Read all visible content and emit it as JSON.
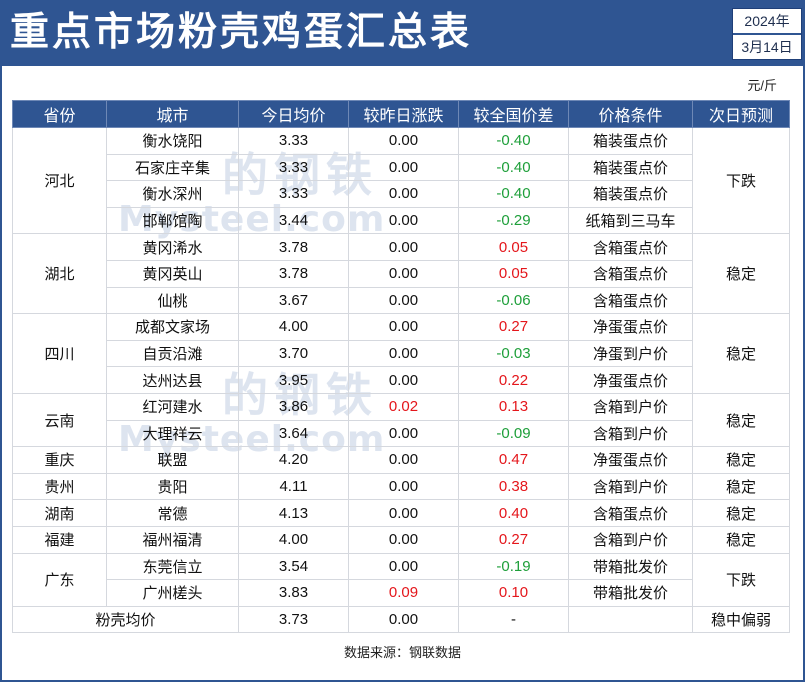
{
  "title": "重点市场粉壳鸡蛋汇总表",
  "date": {
    "year": "2024年",
    "day": "3月14日"
  },
  "unit": "元/斤",
  "watermark": {
    "cn": "的钢铁",
    "en": "Mysteel.com"
  },
  "columns": [
    "省份",
    "城市",
    "今日均价",
    "较昨日涨跌",
    "较全国价差",
    "价格条件",
    "次日预测"
  ],
  "provinces": [
    {
      "name": "河北",
      "forecast": "下跌",
      "rows": [
        {
          "city": "衡水饶阳",
          "price": "3.33",
          "change": "0.00",
          "diff": "-0.40",
          "condition": "箱装蛋点价"
        },
        {
          "city": "石家庄辛集",
          "price": "3.33",
          "change": "0.00",
          "diff": "-0.40",
          "condition": "箱装蛋点价"
        },
        {
          "city": "衡水深州",
          "price": "3.33",
          "change": "0.00",
          "diff": "-0.40",
          "condition": "箱装蛋点价"
        },
        {
          "city": "邯郸馆陶",
          "price": "3.44",
          "change": "0.00",
          "diff": "-0.29",
          "condition": "纸箱到三马车"
        }
      ]
    },
    {
      "name": "湖北",
      "forecast": "稳定",
      "rows": [
        {
          "city": "黄冈浠水",
          "price": "3.78",
          "change": "0.00",
          "diff": "0.05",
          "condition": "含箱蛋点价"
        },
        {
          "city": "黄冈英山",
          "price": "3.78",
          "change": "0.00",
          "diff": "0.05",
          "condition": "含箱蛋点价"
        },
        {
          "city": "仙桃",
          "price": "3.67",
          "change": "0.00",
          "diff": "-0.06",
          "condition": "含箱蛋点价"
        }
      ]
    },
    {
      "name": "四川",
      "forecast": "稳定",
      "rows": [
        {
          "city": "成都文家场",
          "price": "4.00",
          "change": "0.00",
          "diff": "0.27",
          "condition": "净蛋蛋点价"
        },
        {
          "city": "自贡沿滩",
          "price": "3.70",
          "change": "0.00",
          "diff": "-0.03",
          "condition": "净蛋到户价"
        },
        {
          "city": "达州达县",
          "price": "3.95",
          "change": "0.00",
          "diff": "0.22",
          "condition": "净蛋蛋点价"
        }
      ]
    },
    {
      "name": "云南",
      "forecast": "稳定",
      "rows": [
        {
          "city": "红河建水",
          "price": "3.86",
          "change": "0.02",
          "diff": "0.13",
          "condition": "含箱到户价"
        },
        {
          "city": "大理祥云",
          "price": "3.64",
          "change": "0.00",
          "diff": "-0.09",
          "condition": "含箱到户价"
        }
      ]
    },
    {
      "name": "重庆",
      "forecast": "稳定",
      "rows": [
        {
          "city": "联盟",
          "price": "4.20",
          "change": "0.00",
          "diff": "0.47",
          "condition": "净蛋蛋点价"
        }
      ]
    },
    {
      "name": "贵州",
      "forecast": "稳定",
      "rows": [
        {
          "city": "贵阳",
          "price": "4.11",
          "change": "0.00",
          "diff": "0.38",
          "condition": "含箱到户价"
        }
      ]
    },
    {
      "name": "湖南",
      "forecast": "稳定",
      "rows": [
        {
          "city": "常德",
          "price": "4.13",
          "change": "0.00",
          "diff": "0.40",
          "condition": "含箱蛋点价"
        }
      ]
    },
    {
      "name": "福建",
      "forecast": "稳定",
      "rows": [
        {
          "city": "福州福清",
          "price": "4.00",
          "change": "0.00",
          "diff": "0.27",
          "condition": "含箱到户价"
        }
      ]
    },
    {
      "name": "广东",
      "forecast": "下跌",
      "rows": [
        {
          "city": "东莞信立",
          "price": "3.54",
          "change": "0.00",
          "diff": "-0.19",
          "condition": "带箱批发价"
        },
        {
          "city": "广州槎头",
          "price": "3.83",
          "change": "0.09",
          "diff": "0.10",
          "condition": "带箱批发价"
        }
      ]
    }
  ],
  "summary": {
    "label": "粉壳均价",
    "price": "3.73",
    "change": "0.00",
    "diff": "-",
    "condition": "",
    "forecast": "稳中偏弱"
  },
  "source": "数据来源：钢联数据",
  "colors": {
    "header_bg": "#2f5592",
    "up": "#e4161b",
    "down": "#1e9f3a"
  }
}
